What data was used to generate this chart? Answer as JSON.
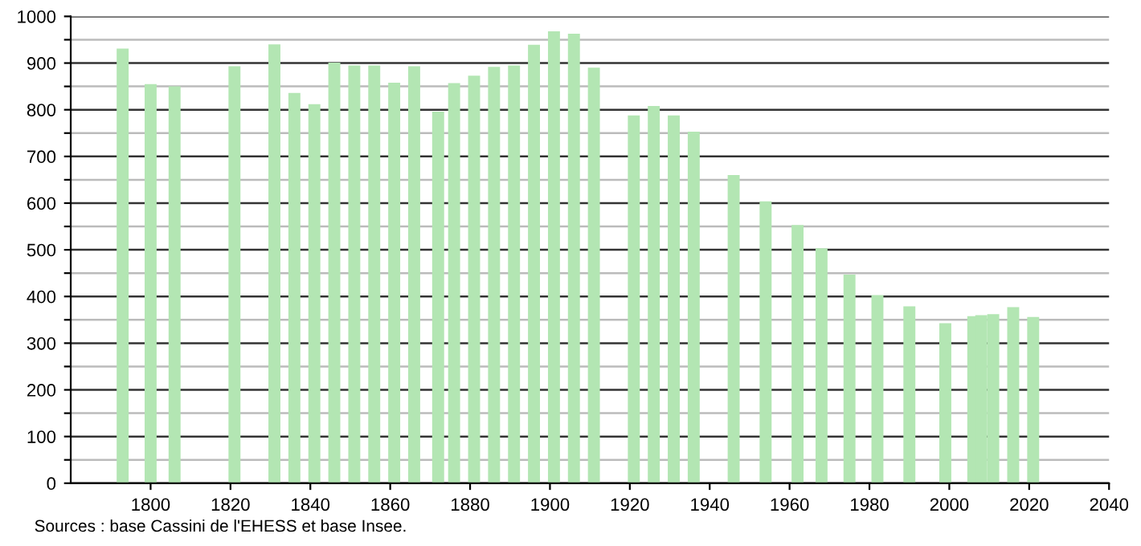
{
  "chart_data": {
    "type": "bar",
    "x": [
      1793,
      1800,
      1806,
      1821,
      1831,
      1836,
      1841,
      1846,
      1851,
      1856,
      1861,
      1866,
      1872,
      1876,
      1881,
      1886,
      1891,
      1896,
      1901,
      1906,
      1911,
      1921,
      1926,
      1931,
      1936,
      1946,
      1954,
      1962,
      1968,
      1975,
      1982,
      1990,
      1999,
      2006,
      2008,
      2011,
      2016,
      2021
    ],
    "values": [
      931,
      855,
      850,
      893,
      940,
      836,
      812,
      901,
      895,
      895,
      858,
      893,
      796,
      857,
      873,
      892,
      895,
      939,
      968,
      963,
      890,
      788,
      808,
      788,
      753,
      660,
      604,
      553,
      503,
      447,
      403,
      379,
      343,
      358,
      360,
      362,
      377,
      356
    ],
    "color": "#b3e6b3",
    "xlim": [
      1780,
      2040
    ],
    "xticks": [
      1800,
      1820,
      1840,
      1860,
      1880,
      1900,
      1920,
      1940,
      1960,
      1980,
      2000,
      2020,
      2040
    ],
    "ylim": [
      0,
      1000
    ],
    "yticks": [
      0,
      {
        "value": 50,
        "label": null
      },
      100,
      {
        "value": 150,
        "label": null
      },
      200,
      {
        "value": 250,
        "label": null
      },
      300,
      {
        "value": 350,
        "label": null
      },
      400,
      {
        "value": 450,
        "label": null
      },
      500,
      {
        "value": 550,
        "label": null
      },
      600,
      {
        "value": 650,
        "label": null
      },
      700,
      {
        "value": 750,
        "label": null
      },
      800,
      {
        "value": 850,
        "label": null
      },
      900,
      {
        "value": 950,
        "label": null
      },
      1000
    ],
    "grid": "y",
    "annotations": [
      "Sources : base Cassini de l'EHESS et base Insee."
    ]
  }
}
